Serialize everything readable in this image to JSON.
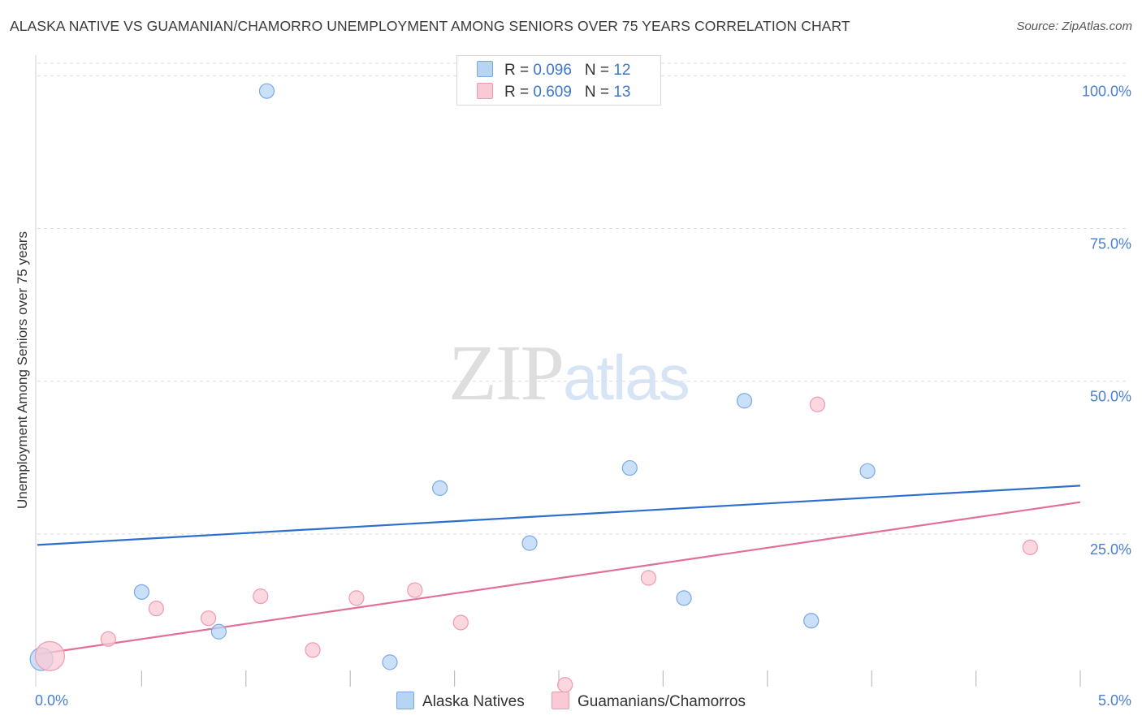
{
  "title": "ALASKA NATIVE VS GUAMANIAN/CHAMORRO UNEMPLOYMENT AMONG SENIORS OVER 75 YEARS CORRELATION CHART",
  "source": "Source: ZipAtlas.com",
  "watermark": {
    "zip": "ZIP",
    "atlas": "atlas"
  },
  "legend": {
    "r_label": "R = ",
    "n_label": "N = ",
    "rows": [
      {
        "r": "0.096",
        "n": "12"
      },
      {
        "r": "0.609",
        "n": "13"
      }
    ]
  },
  "colors": {
    "blue_fill": "#b8d4f5",
    "blue_stroke": "#7aa9e0",
    "blue_line": "#2c6fcc",
    "pink_fill": "#f9c9d6",
    "pink_stroke": "#ee9ab1",
    "pink_line": "#e0709a",
    "tick_text": "#4a7fd0"
  },
  "chart_data": {
    "type": "scatter",
    "title": "ALASKA NATIVE VS GUAMANIAN/CHAMORRO UNEMPLOYMENT AMONG SENIORS OVER 75 YEARS CORRELATION CHART",
    "xlabel": "",
    "ylabel": "Unemployment Among Seniors over 75 years",
    "xlim": [
      0,
      5
    ],
    "ylim": [
      0,
      100
    ],
    "x_tick_labels": [
      "0.0%",
      "5.0%"
    ],
    "y_ticks": [
      25,
      50,
      75,
      100
    ],
    "y_tick_labels": [
      "25.0%",
      "50.0%",
      "75.0%",
      "100.0%"
    ],
    "series": [
      {
        "name": "Alaska Natives",
        "color": "#b8d4f5",
        "points": [
          {
            "x": 0.02,
            "y": 4.5,
            "size": 14
          },
          {
            "x": 1.1,
            "y": 97.5,
            "size": 9
          },
          {
            "x": 0.5,
            "y": 15.5,
            "size": 9
          },
          {
            "x": 0.87,
            "y": 9.0,
            "size": 9
          },
          {
            "x": 1.69,
            "y": 4.0,
            "size": 9
          },
          {
            "x": 1.93,
            "y": 32.5,
            "size": 9
          },
          {
            "x": 2.36,
            "y": 23.5,
            "size": 9
          },
          {
            "x": 2.84,
            "y": 35.8,
            "size": 9
          },
          {
            "x": 3.1,
            "y": 14.5,
            "size": 9
          },
          {
            "x": 3.39,
            "y": 46.8,
            "size": 9
          },
          {
            "x": 3.71,
            "y": 10.8,
            "size": 9
          },
          {
            "x": 3.98,
            "y": 35.3,
            "size": 9
          }
        ],
        "trend": {
          "x": [
            0,
            5
          ],
          "y": [
            23.2,
            32.9
          ]
        }
      },
      {
        "name": "Guamanians/Chamorros",
        "color": "#f9c9d6",
        "points": [
          {
            "x": 0.06,
            "y": 5.0,
            "size": 18
          },
          {
            "x": 0.34,
            "y": 7.8,
            "size": 9
          },
          {
            "x": 0.57,
            "y": 12.8,
            "size": 9
          },
          {
            "x": 0.82,
            "y": 11.2,
            "size": 9
          },
          {
            "x": 1.07,
            "y": 14.8,
            "size": 9
          },
          {
            "x": 1.32,
            "y": 6.0,
            "size": 9
          },
          {
            "x": 1.53,
            "y": 14.5,
            "size": 9
          },
          {
            "x": 1.81,
            "y": 15.8,
            "size": 9
          },
          {
            "x": 2.03,
            "y": 10.5,
            "size": 9
          },
          {
            "x": 2.53,
            "y": 0.3,
            "size": 9
          },
          {
            "x": 2.93,
            "y": 17.8,
            "size": 9
          },
          {
            "x": 3.74,
            "y": 46.2,
            "size": 9
          },
          {
            "x": 4.76,
            "y": 22.8,
            "size": 9
          }
        ],
        "trend": {
          "x": [
            0,
            5
          ],
          "y": [
            5.3,
            30.2
          ]
        }
      }
    ]
  }
}
